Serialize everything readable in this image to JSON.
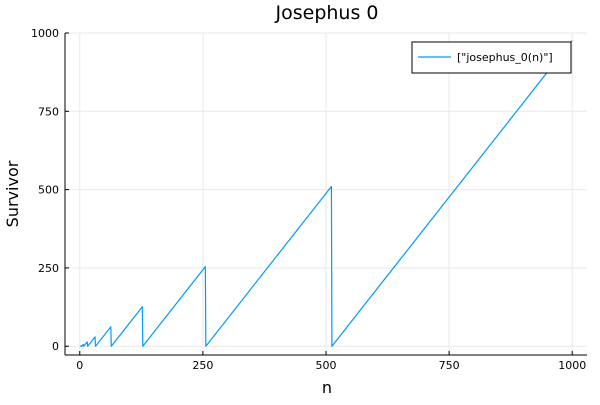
{
  "chart_data": {
    "type": "line",
    "title": "Josephus 0",
    "xlabel": "n",
    "ylabel": "Survivor",
    "xlim": [
      -30,
      1030
    ],
    "ylim": [
      -28,
      1000
    ],
    "x_ticks": [
      0,
      250,
      500,
      750,
      1000
    ],
    "x_tick_labels": [
      "0",
      "250",
      "500",
      "750",
      "1000"
    ],
    "y_ticks": [
      0,
      250,
      500,
      750,
      1000
    ],
    "y_tick_labels": [
      "0",
      "250",
      "500",
      "750",
      "1000"
    ],
    "grid": true,
    "legend_position": "top-right",
    "series": [
      {
        "name": "[\"josephus_0(n)\"]",
        "color": "#009AFA",
        "points": [
          [
            1,
            0
          ],
          [
            2,
            0
          ],
          [
            3,
            2
          ],
          [
            4,
            0
          ],
          [
            7,
            6
          ],
          [
            8,
            0
          ],
          [
            15,
            14
          ],
          [
            16,
            0
          ],
          [
            31,
            30
          ],
          [
            32,
            0
          ],
          [
            63,
            62
          ],
          [
            64,
            0
          ],
          [
            127,
            126
          ],
          [
            128,
            0
          ],
          [
            255,
            254
          ],
          [
            256,
            0
          ],
          [
            511,
            510
          ],
          [
            512,
            0
          ],
          [
            1000,
            976
          ]
        ]
      }
    ]
  }
}
